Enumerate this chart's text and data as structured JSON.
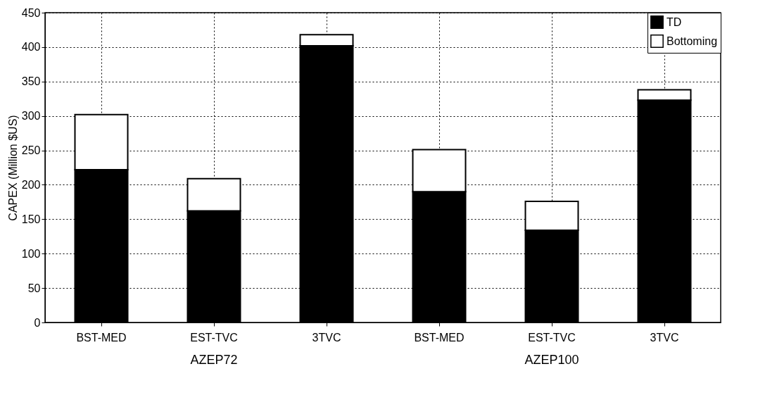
{
  "chart_data": {
    "type": "bar",
    "stacked": true,
    "ylabel": "CAPEX (Million $US)",
    "categories": [
      "BST-MED",
      "EST-TVC",
      "3TVC",
      "BST-MED",
      "EST-TVC",
      "3TVC"
    ],
    "series": [
      {
        "name": "TD",
        "color": "#000000",
        "values": [
          222,
          162,
          402,
          190,
          134,
          323
        ]
      },
      {
        "name": "Bottoming",
        "color": "#ffffff",
        "values": [
          80,
          47,
          16,
          61,
          42,
          15
        ]
      }
    ],
    "ylim": [
      0,
      450
    ],
    "yticks": [
      0,
      50,
      100,
      150,
      200,
      250,
      300,
      350,
      400,
      450
    ],
    "grid": true,
    "legend": "top right",
    "annotations": [
      "AZEP72",
      "AZEP100"
    ]
  }
}
